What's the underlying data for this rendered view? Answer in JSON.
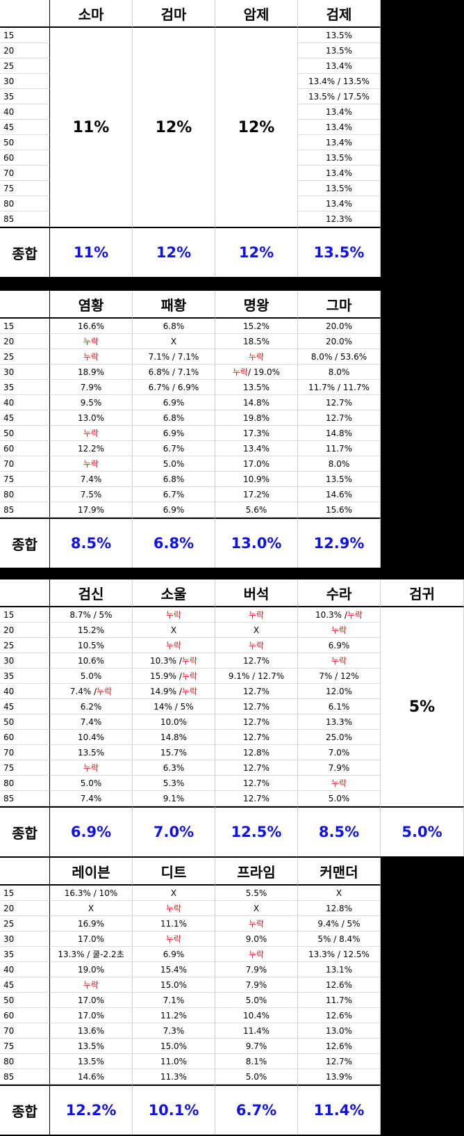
{
  "summary_label": "종합",
  "missing_word": "누락",
  "colors": {
    "summary": "#1010e8",
    "missing": "#e8191a"
  },
  "sections": [
    {
      "headers": [
        "소마",
        "검마",
        "암제",
        "검제"
      ],
      "levels": [
        "15",
        "20",
        "25",
        "30",
        "35",
        "40",
        "45",
        "50",
        "60",
        "70",
        "75",
        "80",
        "85"
      ],
      "merged": {
        "0": "11%",
        "1": "12%",
        "2": "12%"
      },
      "rows": [
        [
          "",
          "",
          "",
          "13.5%"
        ],
        [
          "",
          "",
          "",
          "13.5%"
        ],
        [
          "",
          "",
          "",
          "13.4%"
        ],
        [
          "",
          "",
          "",
          "13.4% / 13.5%"
        ],
        [
          "",
          "",
          "",
          "13.5% / 17.5%"
        ],
        [
          "",
          "",
          "",
          "13.4%"
        ],
        [
          "",
          "",
          "",
          "13.4%"
        ],
        [
          "",
          "",
          "",
          "13.4%"
        ],
        [
          "",
          "",
          "",
          "13.5%"
        ],
        [
          "",
          "",
          "",
          "13.4%"
        ],
        [
          "",
          "",
          "",
          "13.5%"
        ],
        [
          "",
          "",
          "",
          "13.4%"
        ],
        [
          "",
          "",
          "",
          "12.3%"
        ]
      ],
      "totals": [
        "11%",
        "12%",
        "12%",
        "13.5%"
      ]
    },
    {
      "headers": [
        "염황",
        "패황",
        "명왕",
        "그마"
      ],
      "levels": [
        "15",
        "20",
        "25",
        "30",
        "35",
        "40",
        "45",
        "50",
        "60",
        "70",
        "75",
        "80",
        "85"
      ],
      "merged": {},
      "rows": [
        [
          "16.6%",
          "6.8%",
          "15.2%",
          "20.0%"
        ],
        [
          "누락",
          "X",
          "18.5%",
          "20.0%"
        ],
        [
          "누락",
          "7.1% / 7.1%",
          "누락",
          "8.0% / 53.6%"
        ],
        [
          "18.9%",
          "6.8% / 7.1%",
          "누락 / 19.0%",
          "8.0%"
        ],
        [
          "7.9%",
          "6.7% / 6.9%",
          "13.5%",
          "11.7% / 11.7%"
        ],
        [
          "9.5%",
          "6.9%",
          "14.8%",
          "12.7%"
        ],
        [
          "13.0%",
          "6.8%",
          "19.8%",
          "12.7%"
        ],
        [
          "누락",
          "6.9%",
          "17.3%",
          "14.8%"
        ],
        [
          "12.2%",
          "6.7%",
          "13.4%",
          "11.7%"
        ],
        [
          "누락",
          "5.0%",
          "17.0%",
          "8.0%"
        ],
        [
          "7.4%",
          "6.8%",
          "10.9%",
          "13.5%"
        ],
        [
          "7.5%",
          "6.7%",
          "17.2%",
          "14.6%"
        ],
        [
          "17.9%",
          "6.9%",
          "5.6%",
          "15.6%"
        ]
      ],
      "totals": [
        "8.5%",
        "6.8%",
        "13.0%",
        "12.9%"
      ]
    },
    {
      "headers": [
        "검신",
        "소울",
        "버석",
        "수라",
        "검귀"
      ],
      "levels": [
        "15",
        "20",
        "25",
        "30",
        "35",
        "40",
        "45",
        "50",
        "60",
        "70",
        "75",
        "80",
        "85"
      ],
      "merged": {
        "4": "5%"
      },
      "rows": [
        [
          "8.7% / 5%",
          "누락",
          "누락",
          "10.3% / 누락",
          ""
        ],
        [
          "15.2%",
          "X",
          "X",
          "누락",
          ""
        ],
        [
          "10.5%",
          "누락",
          "누락",
          "6.9%",
          ""
        ],
        [
          "10.6%",
          "10.3% / 누락",
          "12.7%",
          "누락",
          ""
        ],
        [
          "5.0%",
          "15.9% / 누락",
          "9.1% / 12.7%",
          "7% / 12%",
          ""
        ],
        [
          "7.4% / 누락",
          "14.9% / 누락",
          "12.7%",
          "12.0%",
          ""
        ],
        [
          "6.2%",
          "14% / 5%",
          "12.7%",
          "6.1%",
          ""
        ],
        [
          "7.4%",
          "10.0%",
          "12.7%",
          "13.3%",
          ""
        ],
        [
          "10.4%",
          "14.8%",
          "12.7%",
          "25.0%",
          ""
        ],
        [
          "13.5%",
          "15.7%",
          "12.8%",
          "7.0%",
          ""
        ],
        [
          "누락",
          "6.3%",
          "12.7%",
          "7.9%",
          ""
        ],
        [
          "5.0%",
          "5.3%",
          "12.7%",
          "누락",
          ""
        ],
        [
          "7.4%",
          "9.1%",
          "12.7%",
          "5.0%",
          ""
        ]
      ],
      "totals": [
        "6.9%",
        "7.0%",
        "12.5%",
        "8.5%",
        "5.0%"
      ]
    },
    {
      "headers": [
        "레이븐",
        "디트",
        "프라임",
        "커맨더"
      ],
      "levels": [
        "15",
        "20",
        "25",
        "30",
        "35",
        "40",
        "45",
        "50",
        "60",
        "70",
        "75",
        "80",
        "85"
      ],
      "merged": {},
      "rows": [
        [
          "16.3% / 10%",
          "X",
          "5.5%",
          "X"
        ],
        [
          "X",
          "누락",
          "X",
          "12.8%"
        ],
        [
          "16.9%",
          "11.1%",
          "누락",
          "9.4% / 5%"
        ],
        [
          "17.0%",
          "누락",
          "9.0%",
          "5% / 8.4%"
        ],
        [
          "13.3% / 쿨-2.2초",
          "6.9%",
          "누락",
          "13.3% / 12.5%"
        ],
        [
          "19.0%",
          "15.4%",
          "7.9%",
          "13.1%"
        ],
        [
          "누락",
          "15.0%",
          "7.9%",
          "12.6%"
        ],
        [
          "17.0%",
          "7.1%",
          "5.0%",
          "11.7%"
        ],
        [
          "17.0%",
          "11.2%",
          "10.4%",
          "12.6%"
        ],
        [
          "13.6%",
          "7.3%",
          "11.4%",
          "13.0%"
        ],
        [
          "13.5%",
          "15.0%",
          "9.7%",
          "12.6%"
        ],
        [
          "13.5%",
          "11.0%",
          "8.1%",
          "12.7%"
        ],
        [
          "14.6%",
          "11.3%",
          "5.0%",
          "13.9%"
        ]
      ],
      "totals": [
        "12.2%",
        "10.1%",
        "6.7%",
        "11.4%"
      ]
    }
  ]
}
